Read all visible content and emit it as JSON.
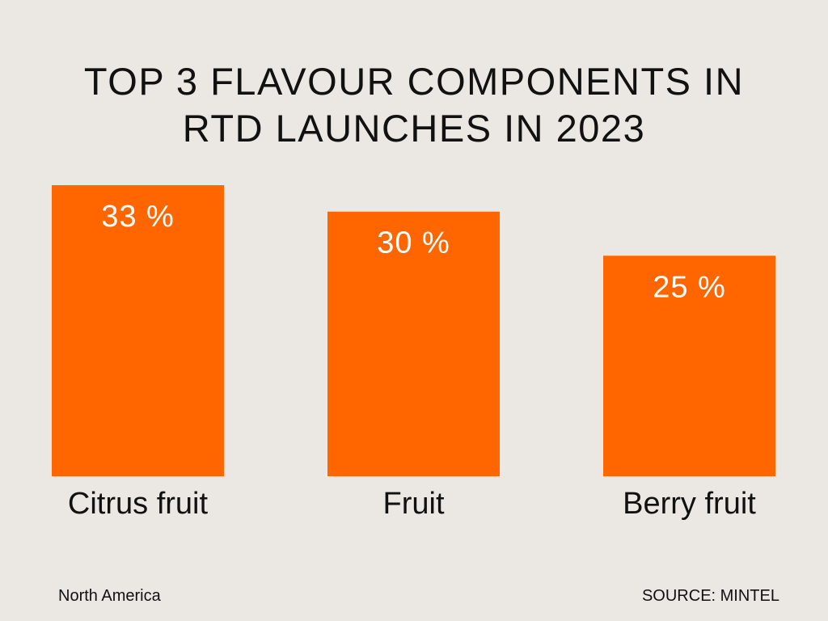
{
  "chart_data": {
    "type": "bar",
    "title_lines": [
      "TOP 3 FLAVOUR COMPONENTS IN",
      "RTD LAUNCHES IN 2023"
    ],
    "categories": [
      "Citrus fruit",
      "Fruit",
      "Berry fruit"
    ],
    "values": [
      33,
      30,
      25
    ],
    "value_labels": [
      "33 %",
      "30 %",
      "25 %"
    ],
    "unit": "%",
    "ylim": [
      0,
      33
    ],
    "grid": false,
    "legend": "none",
    "bar_color": "#ff6600",
    "value_label_color": "#ffffff"
  },
  "footer": {
    "region": "North America",
    "source": "SOURCE: MINTEL"
  },
  "colors": {
    "background": "#ebe8e3",
    "text": "#111111"
  }
}
